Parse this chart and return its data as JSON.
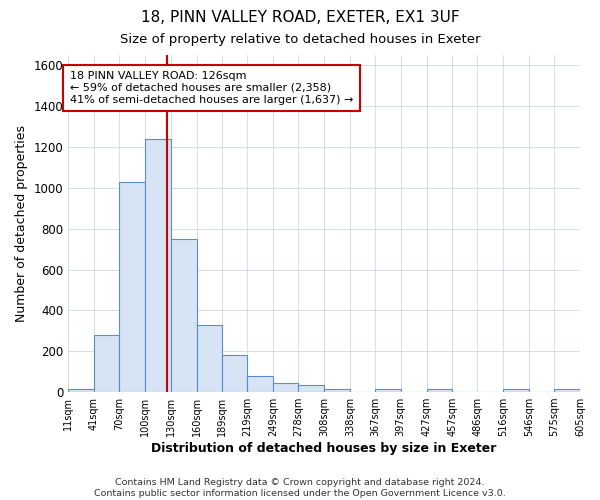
{
  "title1": "18, PINN VALLEY ROAD, EXETER, EX1 3UF",
  "title2": "Size of property relative to detached houses in Exeter",
  "xlabel": "Distribution of detached houses by size in Exeter",
  "ylabel": "Number of detached properties",
  "bin_edges": [
    11,
    41,
    70,
    100,
    130,
    160,
    189,
    219,
    249,
    278,
    308,
    338,
    367,
    397,
    427,
    457,
    486,
    516,
    546,
    575,
    605
  ],
  "bar_heights": [
    15,
    280,
    1030,
    1240,
    750,
    330,
    180,
    80,
    45,
    35,
    15,
    0,
    15,
    0,
    15,
    0,
    0,
    15,
    0,
    15
  ],
  "bar_color": "#d6e4f5",
  "bar_edge_color": "#5b8ec9",
  "grid_color": "#d0d8e4",
  "vline_x": 126,
  "vline_color": "#cc0000",
  "annotation_line1": "18 PINN VALLEY ROAD: 126sqm",
  "annotation_line2": "← 59% of detached houses are smaller (2,358)",
  "annotation_line3": "41% of semi-detached houses are larger (1,637) →",
  "annotation_box_color": "#cc0000",
  "annotation_text_color": "#000000",
  "ylim": [
    0,
    1650
  ],
  "yticks": [
    0,
    200,
    400,
    600,
    800,
    1000,
    1200,
    1400,
    1600
  ],
  "footer": "Contains HM Land Registry data © Crown copyright and database right 2024.\nContains public sector information licensed under the Open Government Licence v3.0.",
  "background_color": "#ffffff",
  "title1_fontsize": 11,
  "title2_fontsize": 9.5
}
